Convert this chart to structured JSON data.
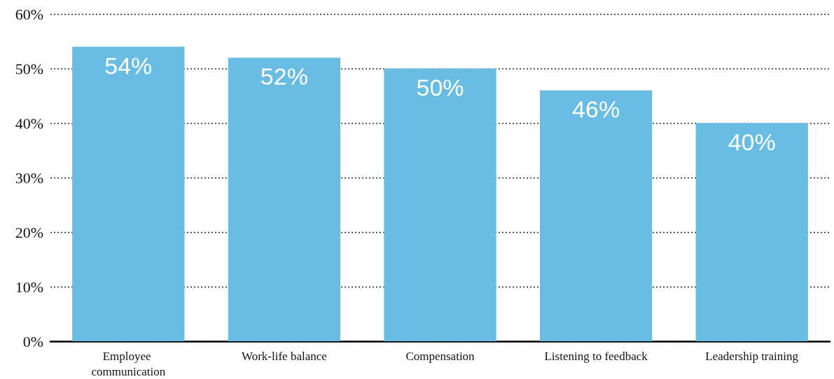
{
  "chart_data": {
    "type": "bar",
    "categories": [
      "Employee communication",
      "Work-life balance",
      "Compensation",
      "Listening to feedback",
      "Leadership training"
    ],
    "values": [
      54,
      52,
      50,
      46,
      40
    ],
    "color": "#69bde2",
    "value_labels": [
      "54%",
      "52%",
      "50%",
      "46%",
      "40%"
    ],
    "ylim": [
      0,
      60
    ],
    "yticks": [
      {
        "value": 0,
        "label": "0%"
      },
      {
        "value": 10,
        "label": "10%"
      },
      {
        "value": 20,
        "label": "20%"
      },
      {
        "value": 30,
        "label": "30%"
      },
      {
        "value": 40,
        "label": "40%"
      },
      {
        "value": 50,
        "label": "50%"
      },
      {
        "value": 60,
        "label": "60%"
      }
    ],
    "grid": "y"
  }
}
